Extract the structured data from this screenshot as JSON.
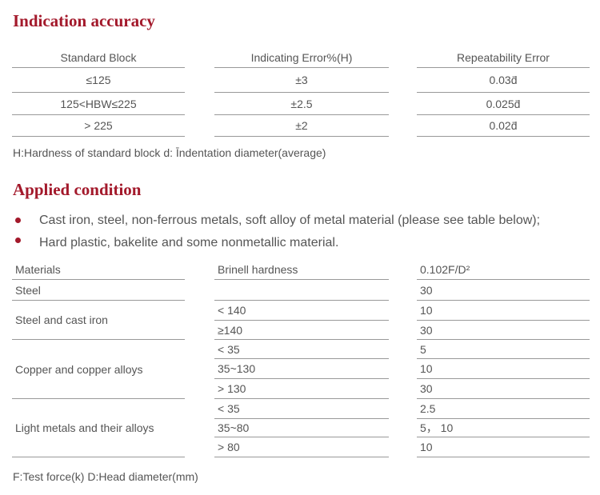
{
  "section1": {
    "title": "Indication accuracy",
    "headers": [
      "Standard Block",
      "Indicating Error%(H)",
      "Repeatability Error"
    ],
    "rows": [
      [
        "≤125",
        "±3",
        "0.03d̄"
      ],
      [
        "125<HBW≤225",
        "±2.5",
        "0.025d̄"
      ],
      [
        "> 225",
        "±2",
        "0.02d̄"
      ]
    ],
    "note": "H:Hardness of standard block  d: Īndentation diameter(average)"
  },
  "section2": {
    "title": "Applied condition",
    "bullets": [
      "Cast iron, steel, non-ferrous metals, soft alloy of metal material (please see table below);",
      "Hard plastic, bakelite and some nonmetallic material."
    ],
    "headers": [
      "Materials",
      "Brinell hardness",
      "0.102F/D²"
    ],
    "materials": [
      "Steel",
      "Steel and cast iron",
      "Copper and copper alloys",
      "Light metals and their alloys"
    ],
    "hardness": [
      "",
      "< 140",
      "≥140",
      "< 35",
      "35~130",
      "> 130",
      "< 35",
      "35~80",
      "> 80"
    ],
    "ratio": [
      "30",
      "10",
      "30",
      "5",
      "10",
      "30",
      "2.5",
      "5， 10",
      "10"
    ],
    "note": "F:Test force(k)  D:Head diameter(mm)"
  },
  "colors": {
    "accent": "#a3192b"
  }
}
